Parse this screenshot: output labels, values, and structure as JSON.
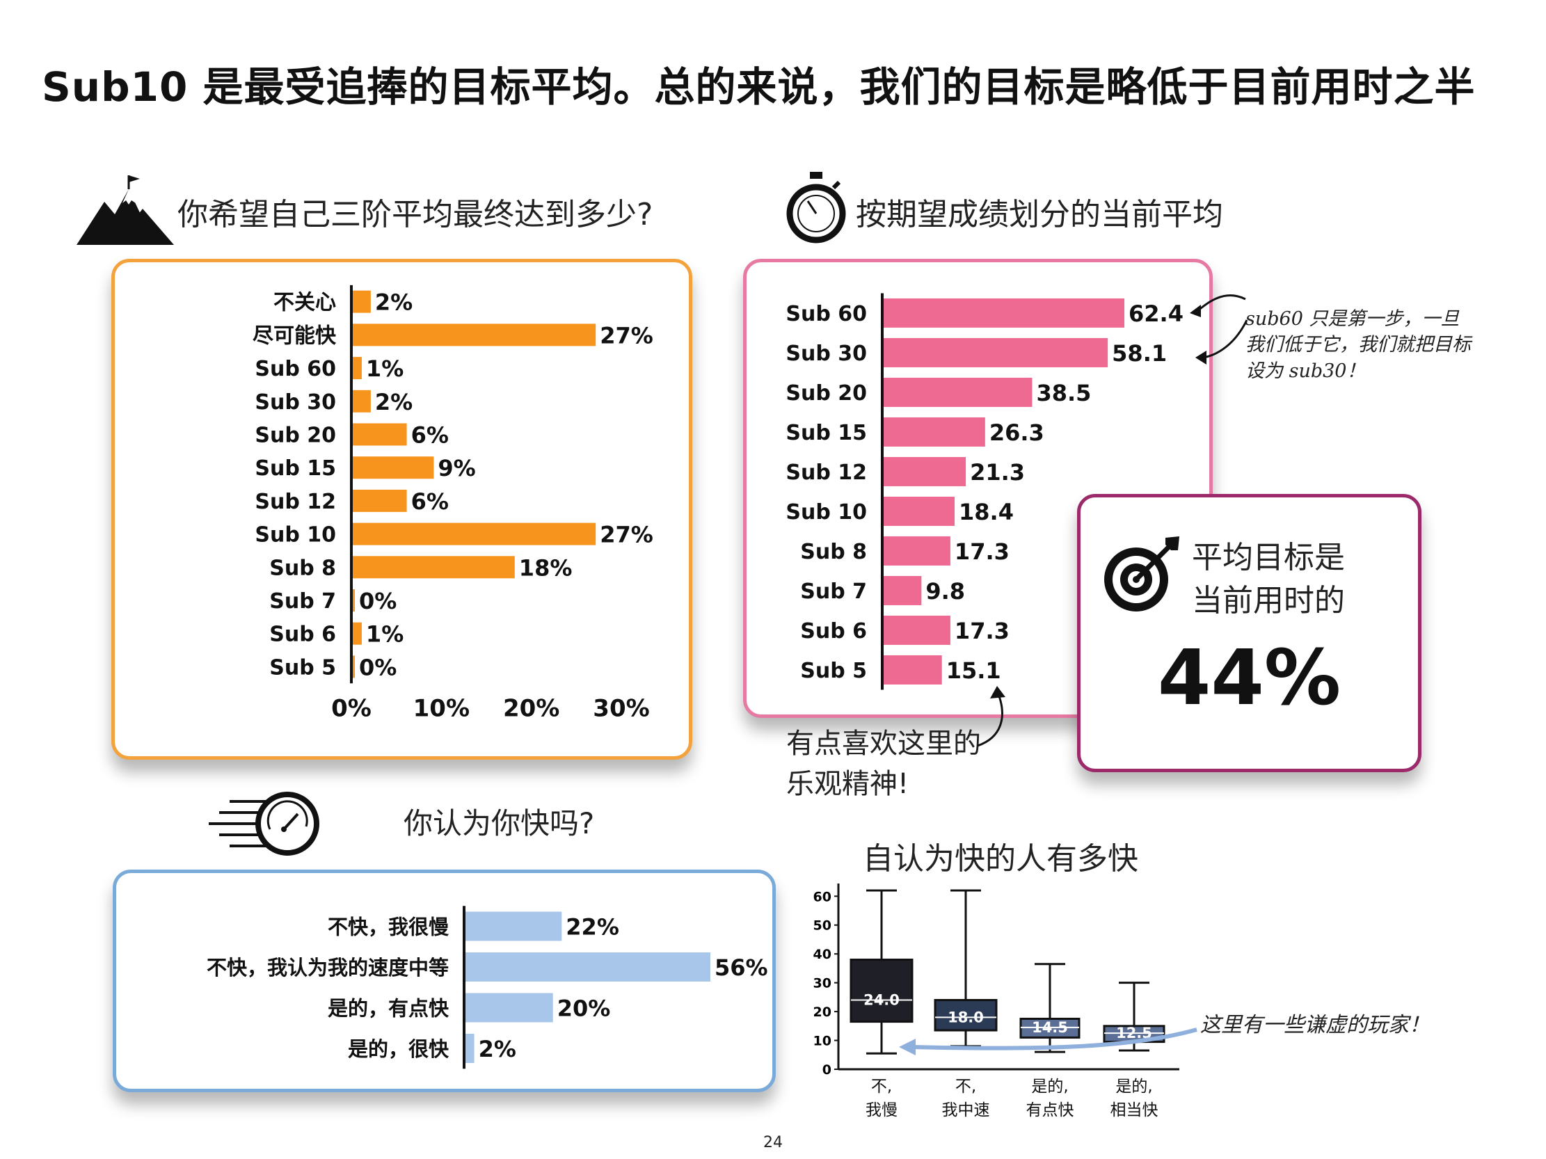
{
  "title": "Sub10 是最受追捧的目标平均。总的来说，我们的目标是略低于目前用时之半",
  "page_number": "24",
  "colors": {
    "orange": "#f7941d",
    "pink": "#ef6a93",
    "blue": "#a8c6ea",
    "box_dark": "#1f1f28",
    "box_mid": "#2b3a55",
    "box_light": "#5b6f96"
  },
  "sections": {
    "goal_title": "你希望自己三阶平均最终达到多少?",
    "current_title": "按期望成绩划分的当前平均",
    "fast_title": "你认为你快吗?",
    "howfast_title": "自认为快的人有多快"
  },
  "notes": {
    "sub60": "sub60 只是第一步，一旦我们低于它，我们就把目标设为 sub30！",
    "optimism": "有点喜欢这里的乐观精神!",
    "humble": "这里有一些谦虚的玩家！"
  },
  "callout": {
    "line1": "平均目标是",
    "line2": "当前用时的",
    "value": "44%"
  },
  "chart_data": [
    {
      "type": "bar",
      "orientation": "horizontal",
      "categories": [
        "不关心",
        "尽可能快",
        "Sub 60",
        "Sub 30",
        "Sub 20",
        "Sub 15",
        "Sub 12",
        "Sub 10",
        "Sub 8",
        "Sub 7",
        "Sub 6",
        "Sub 5"
      ],
      "values": [
        2,
        27,
        1,
        2,
        6,
        9,
        6,
        27,
        18,
        0,
        1,
        0
      ],
      "value_labels": [
        "2%",
        "27%",
        "1%",
        "2%",
        "6%",
        "9%",
        "6%",
        "27%",
        "18%",
        "0%",
        "1%",
        "0%"
      ],
      "xlim": [
        0,
        30
      ],
      "xticks": [
        "0%",
        "10%",
        "20%",
        "30%"
      ]
    },
    {
      "type": "bar",
      "orientation": "horizontal",
      "categories": [
        "Sub 60",
        "Sub 30",
        "Sub 20",
        "Sub 15",
        "Sub 12",
        "Sub 10",
        "Sub 8",
        "Sub 7",
        "Sub 6",
        "Sub 5"
      ],
      "values": [
        62.4,
        58.1,
        38.5,
        26.3,
        21.3,
        18.4,
        17.3,
        9.8,
        17.3,
        15.1
      ],
      "value_labels": [
        "62.4",
        "58.1",
        "38.5",
        "26.3",
        "21.3",
        "18.4",
        "17.3",
        "9.8",
        "17.3",
        "15.1"
      ],
      "xlim": [
        0,
        62.4
      ]
    },
    {
      "type": "bar",
      "orientation": "horizontal",
      "categories": [
        "不快，我很慢",
        "不快，我认为我的速度中等",
        "是的，有点快",
        "是的，很快"
      ],
      "values": [
        22,
        56,
        20,
        2
      ],
      "value_labels": [
        "22%",
        "56%",
        "20%",
        "2%"
      ],
      "xlim": [
        0,
        56
      ]
    },
    {
      "type": "box",
      "categories": [
        [
          "不,",
          "我慢"
        ],
        [
          "不,",
          "我中速"
        ],
        [
          "是的,",
          "有点快"
        ],
        [
          "是的,",
          "相当快"
        ]
      ],
      "medians": [
        24.0,
        18.0,
        14.5,
        12.5
      ],
      "median_labels": [
        "24.0",
        "18.0",
        "14.5",
        "12.5"
      ],
      "q1": [
        16.5,
        13.5,
        11.0,
        9.5
      ],
      "q3": [
        38.0,
        24.0,
        17.5,
        15.0
      ],
      "whisker_low": [
        5.5,
        8.0,
        6.0,
        6.5
      ],
      "whisker_high": [
        62.0,
        62.0,
        36.5,
        30.0
      ],
      "ylim": [
        0,
        62
      ],
      "yticks": [
        "0",
        "10",
        "20",
        "30",
        "40",
        "50",
        "60"
      ]
    }
  ]
}
